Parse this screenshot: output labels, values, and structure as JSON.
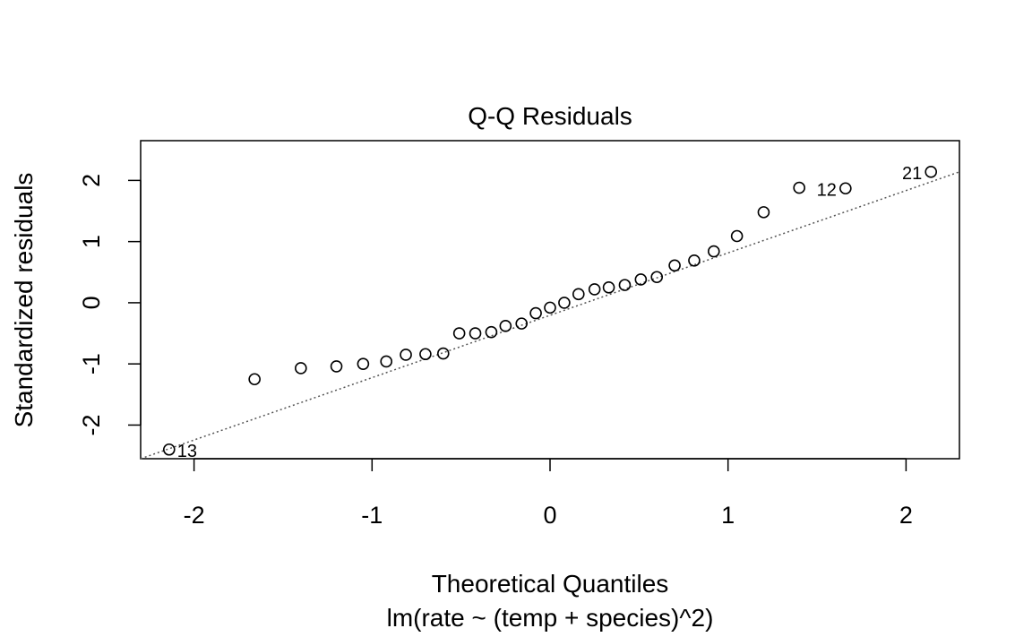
{
  "chart_data": {
    "type": "scatter",
    "title": "Q-Q Residuals",
    "xlabel": "Theoretical Quantiles",
    "sublabel": "lm(rate ~ (temp + species)^2)",
    "ylabel": "Standardized residuals",
    "xlim": [
      -2.3,
      2.3
    ],
    "ylim": [
      -2.55,
      2.65
    ],
    "x_ticks": [
      -2,
      -1,
      0,
      1,
      2
    ],
    "y_ticks": [
      -2,
      -1,
      0,
      1,
      2
    ],
    "x_tick_labels": [
      "-2",
      "-1",
      "0",
      "1",
      "2"
    ],
    "y_tick_labels": [
      "-2",
      "-1",
      "0",
      "1",
      "2"
    ],
    "grid": false,
    "reference_line": {
      "style": "dotted",
      "points": [
        [
          -2.3,
          -2.55
        ],
        [
          2.3,
          2.14
        ]
      ]
    },
    "point_labels": [
      {
        "text": "13",
        "x": -2.14,
        "y": -2.4,
        "side": "right"
      },
      {
        "text": "12",
        "x": 1.66,
        "y": 1.87,
        "side": "left"
      },
      {
        "text": "21",
        "x": 2.14,
        "y": 2.14,
        "side": "left"
      }
    ],
    "points": [
      {
        "x": -2.14,
        "y": -2.4
      },
      {
        "x": -1.66,
        "y": -1.25
      },
      {
        "x": -1.4,
        "y": -1.07
      },
      {
        "x": -1.2,
        "y": -1.04
      },
      {
        "x": -1.05,
        "y": -1.0
      },
      {
        "x": -0.92,
        "y": -0.96
      },
      {
        "x": -0.81,
        "y": -0.85
      },
      {
        "x": -0.7,
        "y": -0.84
      },
      {
        "x": -0.6,
        "y": -0.83
      },
      {
        "x": -0.51,
        "y": -0.5
      },
      {
        "x": -0.42,
        "y": -0.5
      },
      {
        "x": -0.33,
        "y": -0.48
      },
      {
        "x": -0.25,
        "y": -0.38
      },
      {
        "x": -0.16,
        "y": -0.34
      },
      {
        "x": -0.08,
        "y": -0.17
      },
      {
        "x": 0.0,
        "y": -0.08
      },
      {
        "x": 0.08,
        "y": 0.0
      },
      {
        "x": 0.16,
        "y": 0.14
      },
      {
        "x": 0.25,
        "y": 0.22
      },
      {
        "x": 0.33,
        "y": 0.25
      },
      {
        "x": 0.42,
        "y": 0.29
      },
      {
        "x": 0.51,
        "y": 0.38
      },
      {
        "x": 0.6,
        "y": 0.42
      },
      {
        "x": 0.7,
        "y": 0.61
      },
      {
        "x": 0.81,
        "y": 0.69
      },
      {
        "x": 0.92,
        "y": 0.84
      },
      {
        "x": 1.05,
        "y": 1.09
      },
      {
        "x": 1.2,
        "y": 1.48
      },
      {
        "x": 1.4,
        "y": 1.88
      },
      {
        "x": 1.66,
        "y": 1.87
      },
      {
        "x": 2.14,
        "y": 2.14
      }
    ]
  }
}
